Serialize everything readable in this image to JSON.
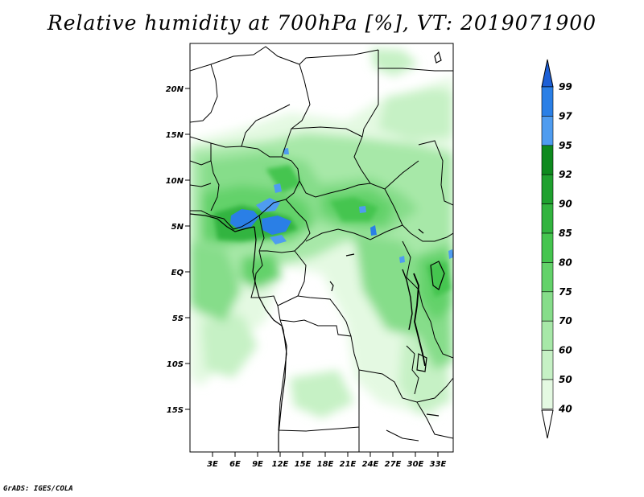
{
  "title": "Relative humidity at 700hPa [%], VT: 2019071900",
  "credit": "GrADS: IGES/COLA",
  "lat_labels": [
    "20N",
    "15N",
    "10N",
    "5N",
    "EQ",
    "5S",
    "10S",
    "15S"
  ],
  "lon_labels": [
    "3E",
    "6E",
    "9E",
    "12E",
    "15E",
    "18E",
    "21E",
    "24E",
    "27E",
    "30E",
    "33E"
  ],
  "colorbar": {
    "labels": [
      "99",
      "97",
      "95",
      "92",
      "90",
      "85",
      "80",
      "75",
      "70",
      "60",
      "50",
      "40"
    ],
    "colors": [
      "#1c5fd6",
      "#2a7fe6",
      "#4f9cf0",
      "#0e8a1e",
      "#1fa12f",
      "#32b43f",
      "#45c54f",
      "#63d26a",
      "#86dd8a",
      "#a7e8a8",
      "#c6f1c5",
      "#e4f9e2"
    ]
  },
  "chart_data": {
    "type": "heatmap",
    "variable": "Relative humidity at 700hPa",
    "unit": "%",
    "valid_time": "2019071900",
    "lat_range": [
      -19,
      25
    ],
    "lon_range": [
      0,
      35
    ],
    "levels": [
      40,
      50,
      60,
      70,
      75,
      80,
      85,
      90,
      92,
      95,
      97,
      99
    ]
  }
}
